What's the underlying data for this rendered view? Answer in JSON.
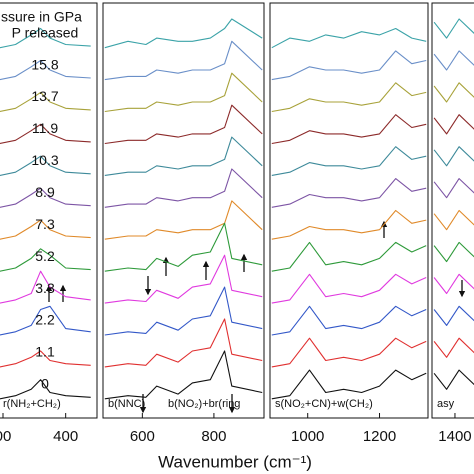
{
  "xlabel": "Wavenumber (cm⁻¹)",
  "chart_data": [
    {
      "type": "line",
      "title": "ssure in GPa",
      "annotation": "r(NH₂+CH₂)",
      "x": [
        295,
        320,
        345,
        360,
        375,
        400,
        440
      ],
      "xlim": [
        292,
        450
      ],
      "ylim": [
        0,
        13
      ],
      "xticks": [
        {
          "value": 300,
          "label": "00"
        },
        400
      ],
      "series": [
        {
          "name": "P released",
          "color": "#3ba3a8",
          "values": [
            11.6,
            11.7,
            12.0,
            12.2,
            11.9,
            11.7,
            11.65
          ]
        },
        {
          "name": "15.8",
          "color": "#6a8fc8",
          "values": [
            10.6,
            10.7,
            11.0,
            11.2,
            10.9,
            10.7,
            10.65
          ]
        },
        {
          "name": "13.7",
          "color": "#a8a23a",
          "values": [
            9.6,
            9.7,
            10.0,
            10.2,
            9.9,
            9.7,
            9.65
          ]
        },
        {
          "name": "11.9",
          "color": "#8c2a2a",
          "values": [
            8.6,
            8.7,
            9.0,
            9.2,
            8.9,
            8.7,
            8.65
          ]
        },
        {
          "name": "10.3",
          "color": "#3e8a9a",
          "values": [
            7.6,
            7.7,
            8.0,
            8.2,
            7.9,
            7.7,
            7.65
          ]
        },
        {
          "name": "8.9",
          "color": "#7d55a5",
          "values": [
            6.6,
            6.7,
            7.0,
            7.2,
            6.9,
            6.7,
            6.65
          ]
        },
        {
          "name": "7.3",
          "color": "#e08a2a",
          "values": [
            5.6,
            5.7,
            6.0,
            6.2,
            5.9,
            5.7,
            5.65
          ]
        },
        {
          "name": "5.2",
          "color": "#2e9a3a",
          "values": [
            4.6,
            4.7,
            5.0,
            5.3,
            5.1,
            4.7,
            4.65
          ]
        },
        {
          "name": "3.3",
          "color": "#e03adf",
          "values": [
            3.6,
            3.7,
            3.9,
            4.6,
            4.1,
            3.8,
            3.7
          ]
        },
        {
          "name": "2.2",
          "color": "#3358c8",
          "values": [
            2.6,
            2.7,
            2.9,
            3.4,
            3.5,
            2.8,
            2.7
          ]
        },
        {
          "name": "1.1",
          "color": "#e03030",
          "values": [
            1.6,
            1.7,
            1.9,
            2.1,
            1.8,
            1.7,
            1.65
          ]
        },
        {
          "name": "0",
          "color": "#111111",
          "values": [
            0.6,
            0.7,
            0.9,
            1.2,
            0.8,
            0.7,
            0.65
          ]
        }
      ]
    },
    {
      "type": "line",
      "annotation": "b(NNC)",
      "annotation2": "b(NO₂)+br(ring",
      "x": [
        495,
        560,
        610,
        640,
        700,
        740,
        790,
        830,
        850,
        935
      ],
      "xlim": [
        490,
        940
      ],
      "ylim": [
        0,
        13
      ],
      "xticks": [
        600,
        800
      ],
      "series": [
        {
          "color": "#3ba3a8",
          "values": [
            11.6,
            11.8,
            11.7,
            11.9,
            11.8,
            11.8,
            11.9,
            12.2,
            12.5,
            11.9
          ]
        },
        {
          "color": "#6a8fc8",
          "values": [
            10.6,
            10.7,
            10.7,
            10.9,
            10.8,
            10.9,
            10.9,
            11.1,
            11.8,
            10.9
          ]
        },
        {
          "color": "#a8a23a",
          "values": [
            9.6,
            9.7,
            9.7,
            9.9,
            9.8,
            9.9,
            9.9,
            10.1,
            10.8,
            9.9
          ]
        },
        {
          "color": "#8c2a2a",
          "values": [
            8.6,
            8.7,
            8.7,
            8.9,
            8.8,
            8.9,
            8.9,
            9.1,
            9.8,
            8.9
          ]
        },
        {
          "color": "#3e8a9a",
          "values": [
            7.6,
            7.7,
            7.7,
            7.9,
            7.8,
            7.9,
            7.9,
            8.1,
            8.8,
            7.9
          ]
        },
        {
          "color": "#7d55a5",
          "values": [
            6.6,
            6.7,
            6.7,
            6.9,
            6.8,
            6.9,
            6.9,
            7.1,
            7.8,
            6.9
          ]
        },
        {
          "color": "#e08a2a",
          "values": [
            5.6,
            5.7,
            5.7,
            5.9,
            5.8,
            5.9,
            5.9,
            6.1,
            6.8,
            5.9
          ]
        },
        {
          "color": "#2e9a3a",
          "values": [
            4.6,
            4.7,
            4.65,
            5.0,
            4.75,
            5.1,
            5.2,
            6.1,
            5.0,
            4.8
          ]
        },
        {
          "color": "#e03adf",
          "values": [
            3.6,
            3.7,
            3.65,
            4.0,
            3.75,
            4.1,
            4.2,
            5.1,
            4.0,
            3.8
          ]
        },
        {
          "color": "#3358c8",
          "values": [
            2.6,
            2.7,
            2.65,
            3.0,
            2.75,
            3.1,
            3.2,
            4.1,
            3.0,
            2.8
          ]
        },
        {
          "color": "#e03030",
          "values": [
            1.6,
            1.7,
            1.65,
            2.0,
            1.75,
            2.1,
            2.2,
            3.1,
            2.0,
            1.8
          ]
        },
        {
          "color": "#111111",
          "values": [
            0.6,
            0.7,
            0.65,
            1.0,
            0.75,
            1.1,
            1.2,
            2.1,
            1.0,
            0.8
          ]
        }
      ]
    },
    {
      "type": "line",
      "annotation": "s(NO₂+CN)+w(CH₂)",
      "x": [
        900,
        950,
        1005,
        1050,
        1100,
        1150,
        1200,
        1245,
        1290,
        1330
      ],
      "xlim": [
        895,
        1335
      ],
      "ylim": [
        0,
        13
      ],
      "xticks": [
        1000,
        1200
      ],
      "series": [
        {
          "color": "#3ba3a8",
          "values": [
            11.6,
            11.9,
            11.8,
            12.0,
            11.9,
            12.1,
            12.0,
            12.2,
            11.9,
            11.8
          ]
        },
        {
          "color": "#6a8fc8",
          "values": [
            10.6,
            10.7,
            11.0,
            10.9,
            10.9,
            10.8,
            10.9,
            11.5,
            11.1,
            11.2
          ]
        },
        {
          "color": "#a8a23a",
          "values": [
            9.6,
            9.7,
            10.0,
            9.9,
            9.9,
            9.8,
            9.9,
            10.5,
            10.1,
            10.2
          ]
        },
        {
          "color": "#8c2a2a",
          "values": [
            8.6,
            8.7,
            9.0,
            8.9,
            8.9,
            8.8,
            8.9,
            9.5,
            9.1,
            9.2
          ]
        },
        {
          "color": "#3e8a9a",
          "values": [
            7.6,
            7.7,
            8.0,
            7.9,
            7.9,
            7.8,
            7.9,
            8.5,
            8.1,
            8.2
          ]
        },
        {
          "color": "#7d55a5",
          "values": [
            6.6,
            6.7,
            7.0,
            6.9,
            6.9,
            6.8,
            6.9,
            7.5,
            7.1,
            7.2
          ]
        },
        {
          "color": "#e08a2a",
          "values": [
            5.6,
            5.7,
            6.0,
            5.9,
            5.9,
            5.8,
            5.9,
            6.5,
            6.1,
            6.2
          ]
        },
        {
          "color": "#2e9a3a",
          "values": [
            4.6,
            4.7,
            5.5,
            4.8,
            4.9,
            4.8,
            5.0,
            5.5,
            5.2,
            5.4
          ]
        },
        {
          "color": "#e03adf",
          "values": [
            3.6,
            3.7,
            4.5,
            3.8,
            3.9,
            3.8,
            4.0,
            4.5,
            4.2,
            4.4
          ]
        },
        {
          "color": "#3358c8",
          "values": [
            2.6,
            2.7,
            3.5,
            2.8,
            2.9,
            2.8,
            3.0,
            3.5,
            3.2,
            3.4
          ]
        },
        {
          "color": "#e03030",
          "values": [
            1.6,
            1.7,
            2.5,
            1.8,
            1.9,
            1.8,
            2.0,
            2.5,
            2.2,
            2.4
          ]
        },
        {
          "color": "#111111",
          "values": [
            0.6,
            0.7,
            1.5,
            0.8,
            0.9,
            0.8,
            1.0,
            1.5,
            1.2,
            1.4
          ]
        }
      ]
    },
    {
      "type": "line",
      "annotation": "asy",
      "x": [
        1350,
        1380,
        1410,
        1450
      ],
      "xlim": [
        1345,
        1460
      ],
      "ylim": [
        0,
        13
      ],
      "xticks": [
        1400
      ],
      "series": [
        {
          "color": "#3ba3a8",
          "values": [
            12.4,
            11.9,
            12.5,
            12.0
          ]
        },
        {
          "color": "#6a8fc8",
          "values": [
            11.4,
            10.9,
            11.5,
            11.0
          ]
        },
        {
          "color": "#a8a23a",
          "values": [
            10.4,
            9.9,
            10.5,
            10.0
          ]
        },
        {
          "color": "#8c2a2a",
          "values": [
            9.4,
            8.9,
            9.5,
            9.0
          ]
        },
        {
          "color": "#3e8a9a",
          "values": [
            8.4,
            7.9,
            8.5,
            8.0
          ]
        },
        {
          "color": "#7d55a5",
          "values": [
            7.4,
            6.9,
            7.5,
            7.0
          ]
        },
        {
          "color": "#e08a2a",
          "values": [
            6.4,
            5.9,
            6.5,
            6.0
          ]
        },
        {
          "color": "#2e9a3a",
          "values": [
            5.4,
            4.9,
            5.5,
            5.0
          ]
        },
        {
          "color": "#e03adf",
          "values": [
            4.4,
            3.9,
            4.5,
            4.0
          ]
        },
        {
          "color": "#3358c8",
          "values": [
            3.4,
            2.9,
            3.5,
            3.0
          ]
        },
        {
          "color": "#e03030",
          "values": [
            2.4,
            1.9,
            2.5,
            2.0
          ]
        },
        {
          "color": "#111111",
          "values": [
            1.4,
            0.9,
            1.5,
            1.0
          ]
        }
      ]
    }
  ]
}
